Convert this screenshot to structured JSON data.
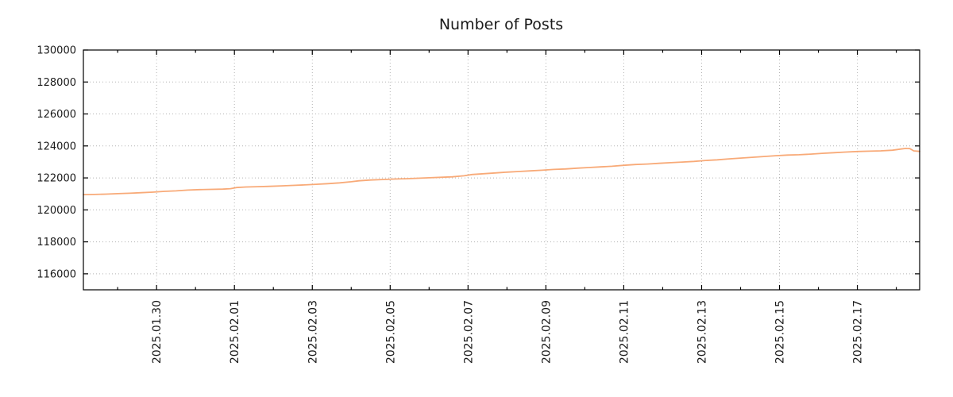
{
  "chart_data": {
    "type": "line",
    "title": "Number of Posts",
    "series_color": "#f8aa78",
    "grid": true,
    "legend": "none",
    "ylabel": "",
    "xlabel": "",
    "ylim": [
      115000,
      130000
    ],
    "y_ticks": [
      116000,
      118000,
      120000,
      122000,
      124000,
      126000,
      128000,
      130000
    ],
    "x_axis": {
      "unit": "day index (0 = 2025.01.28)"
    },
    "xlim_days": [
      0.12,
      21.6
    ],
    "x_ticks": [
      {
        "day": 2,
        "label": "2025.01.30"
      },
      {
        "day": 4,
        "label": "2025.02.01"
      },
      {
        "day": 6,
        "label": "2025.02.03"
      },
      {
        "day": 8,
        "label": "2025.02.05"
      },
      {
        "day": 10,
        "label": "2025.02.07"
      },
      {
        "day": 12,
        "label": "2025.02.09"
      },
      {
        "day": 14,
        "label": "2025.02.11"
      },
      {
        "day": 16,
        "label": "2025.02.13"
      },
      {
        "day": 18,
        "label": "2025.02.15"
      },
      {
        "day": 20,
        "label": "2025.02.17"
      }
    ],
    "x_minor_tick_days": [
      1,
      3,
      5,
      7,
      9,
      11,
      13,
      15,
      17,
      19,
      21
    ],
    "points": [
      [
        0.12,
        120955
      ],
      [
        0.4,
        120965
      ],
      [
        0.7,
        120985
      ],
      [
        1.0,
        121015
      ],
      [
        1.3,
        121040
      ],
      [
        1.6,
        121075
      ],
      [
        1.9,
        121110
      ],
      [
        2.2,
        121160
      ],
      [
        2.5,
        121190
      ],
      [
        2.8,
        121240
      ],
      [
        3.1,
        121270
      ],
      [
        3.4,
        121285
      ],
      [
        3.7,
        121300
      ],
      [
        3.9,
        121330
      ],
      [
        4.05,
        121395
      ],
      [
        4.3,
        121430
      ],
      [
        4.6,
        121450
      ],
      [
        4.9,
        121470
      ],
      [
        5.2,
        121500
      ],
      [
        5.5,
        121530
      ],
      [
        5.8,
        121560
      ],
      [
        6.1,
        121600
      ],
      [
        6.4,
        121640
      ],
      [
        6.7,
        121690
      ],
      [
        7.0,
        121760
      ],
      [
        7.2,
        121820
      ],
      [
        7.5,
        121870
      ],
      [
        7.8,
        121900
      ],
      [
        8.1,
        121930
      ],
      [
        8.4,
        121950
      ],
      [
        8.7,
        121980
      ],
      [
        9.0,
        122010
      ],
      [
        9.3,
        122040
      ],
      [
        9.6,
        122070
      ],
      [
        9.9,
        122130
      ],
      [
        10.1,
        122210
      ],
      [
        10.4,
        122260
      ],
      [
        10.7,
        122310
      ],
      [
        11.0,
        122360
      ],
      [
        11.3,
        122400
      ],
      [
        11.6,
        122440
      ],
      [
        11.9,
        122480
      ],
      [
        12.2,
        122530
      ],
      [
        12.5,
        122560
      ],
      [
        12.8,
        122610
      ],
      [
        13.1,
        122650
      ],
      [
        13.4,
        122690
      ],
      [
        13.7,
        122730
      ],
      [
        14.0,
        122790
      ],
      [
        14.3,
        122840
      ],
      [
        14.6,
        122870
      ],
      [
        14.9,
        122910
      ],
      [
        15.2,
        122950
      ],
      [
        15.5,
        122990
      ],
      [
        15.8,
        123030
      ],
      [
        16.1,
        123090
      ],
      [
        16.4,
        123130
      ],
      [
        16.7,
        123190
      ],
      [
        17.0,
        123240
      ],
      [
        17.3,
        123290
      ],
      [
        17.6,
        123340
      ],
      [
        17.9,
        123390
      ],
      [
        18.2,
        123430
      ],
      [
        18.5,
        123450
      ],
      [
        18.8,
        123490
      ],
      [
        19.1,
        123540
      ],
      [
        19.4,
        123580
      ],
      [
        19.7,
        123620
      ],
      [
        20.0,
        123650
      ],
      [
        20.3,
        123670
      ],
      [
        20.6,
        123690
      ],
      [
        20.9,
        123730
      ],
      [
        21.1,
        123800
      ],
      [
        21.25,
        123845
      ],
      [
        21.35,
        123830
      ],
      [
        21.45,
        123690
      ],
      [
        21.6,
        123655
      ]
    ]
  }
}
